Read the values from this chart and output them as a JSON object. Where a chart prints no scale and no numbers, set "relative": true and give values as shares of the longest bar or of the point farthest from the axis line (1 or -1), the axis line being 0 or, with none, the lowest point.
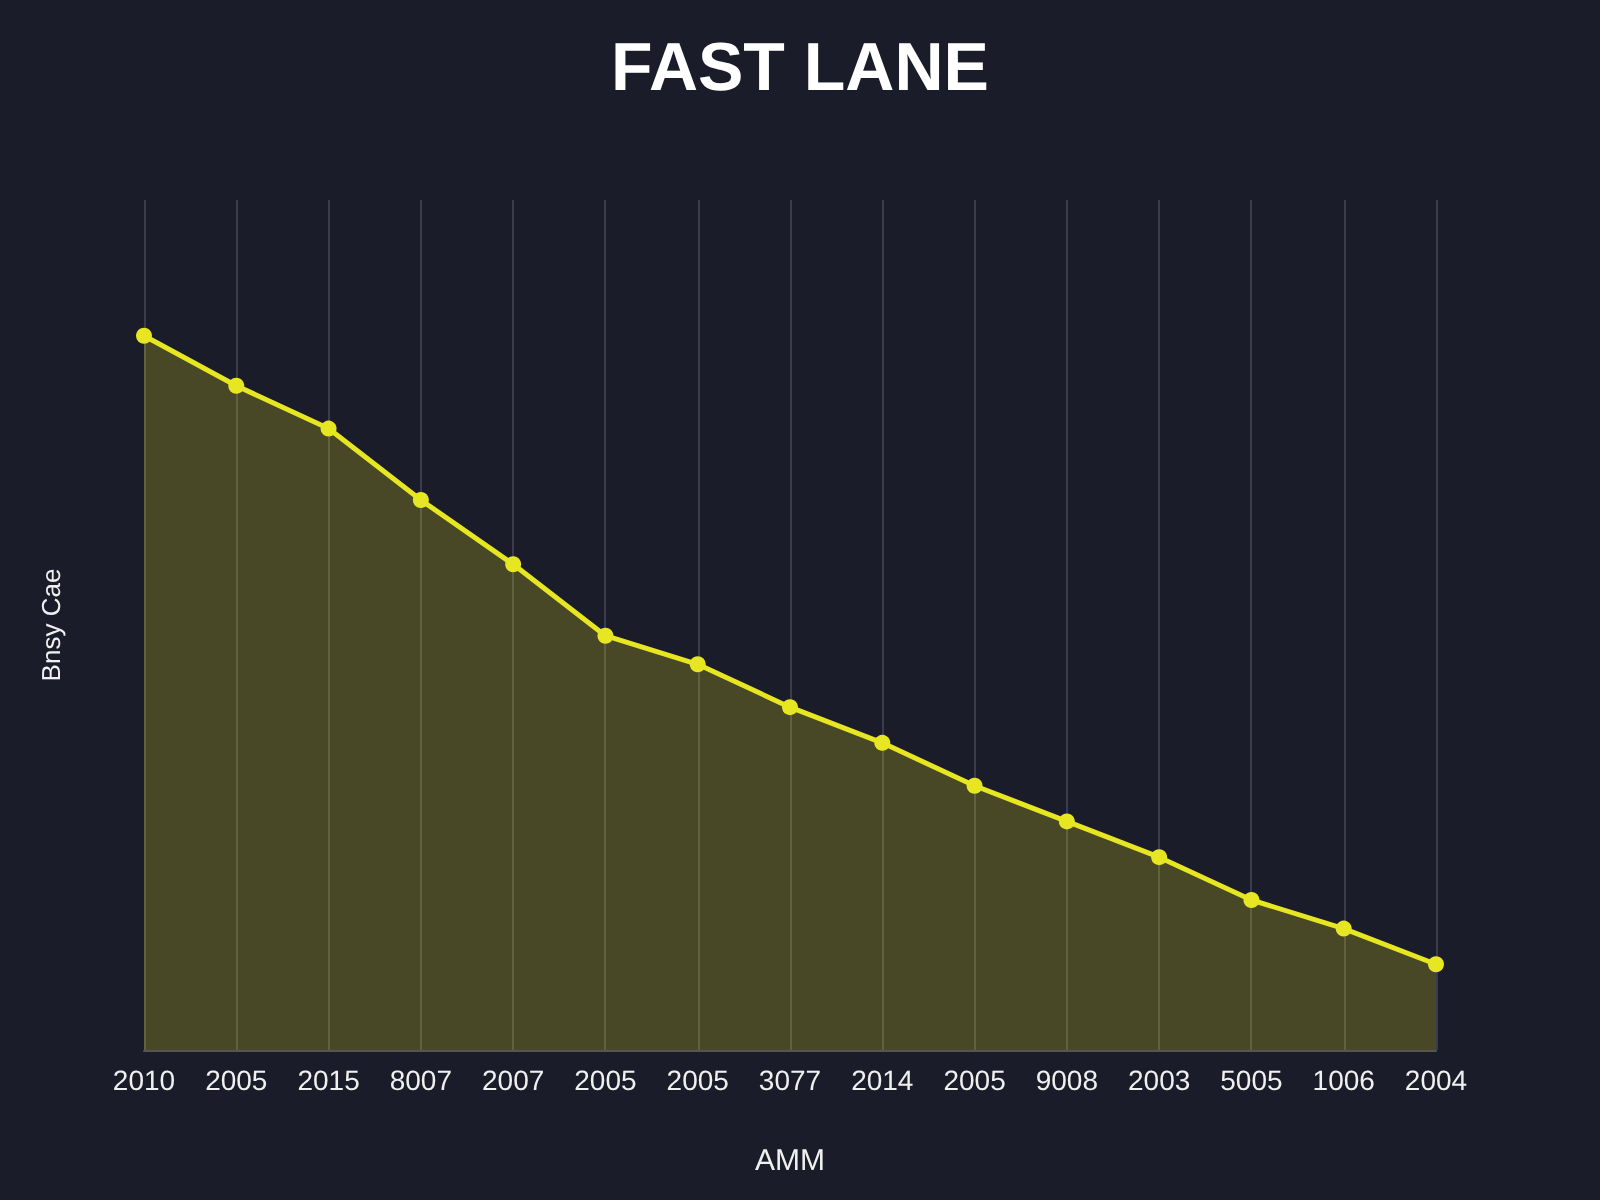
{
  "chart_data": {
    "type": "area",
    "title": "FAST LANE",
    "xlabel": "AMM",
    "ylabel": "Bnsy Cae",
    "relative": true,
    "categories": [
      "2010",
      "2005",
      "2015",
      "8007",
      "2007",
      "2005",
      "2005",
      "3077",
      "2014",
      "2005",
      "9008",
      "2003",
      "5005",
      "1006",
      "2004"
    ],
    "series": [
      {
        "color": "#e6e622",
        "values": [
          1.0,
          0.93,
          0.87,
          0.77,
          0.68,
          0.58,
          0.54,
          0.48,
          0.43,
          0.37,
          0.32,
          0.27,
          0.21,
          0.17,
          0.12
        ]
      }
    ],
    "grid": "x",
    "marker": "circle",
    "line_style": "solid"
  }
}
